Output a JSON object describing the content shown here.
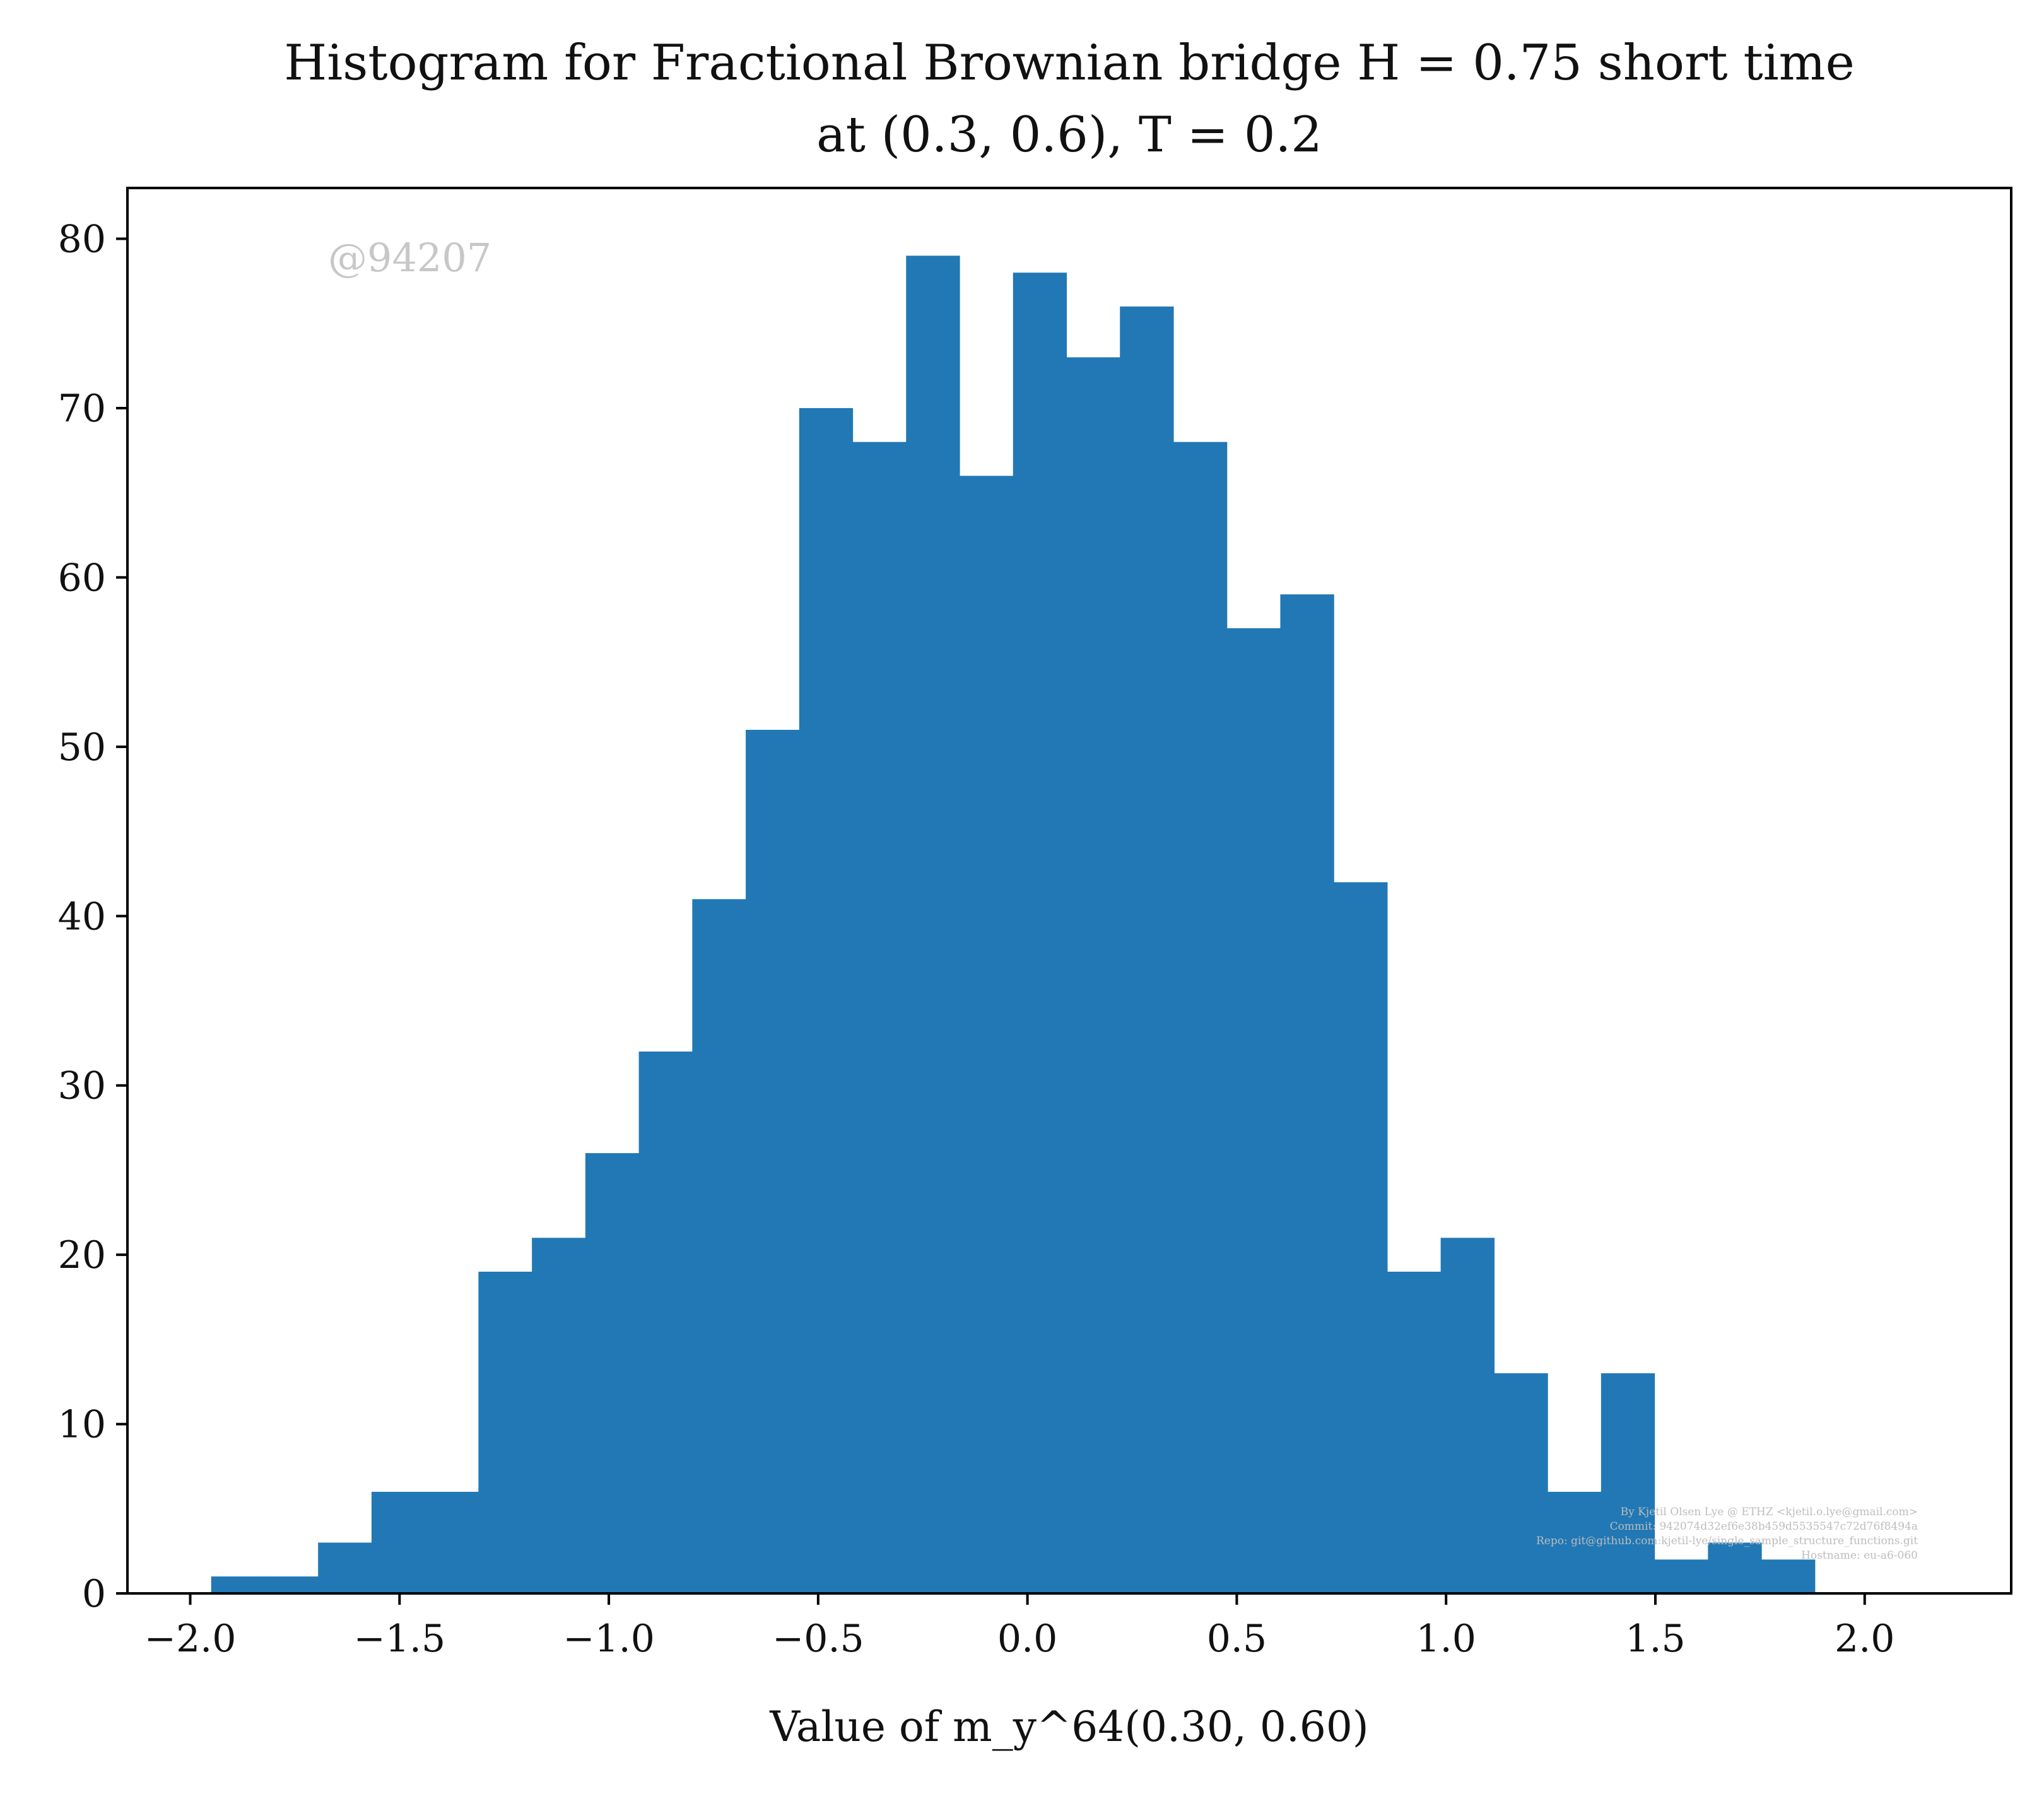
{
  "chart_data": {
    "type": "bar",
    "title_lines": [
      "Histogram for Fractional Brownian bridge H = 0.75 short time",
      "at (0.3, 0.6), T = 0.2"
    ],
    "xlabel": "Value of m_y^64(0.30, 0.60)",
    "ylabel": "",
    "xlim": [
      -2.15,
      2.35
    ],
    "ylim": [
      0,
      83
    ],
    "x_ticks": [
      -2.0,
      -1.5,
      -1.0,
      -0.5,
      0.0,
      0.5,
      1.0,
      1.5,
      2.0
    ],
    "x_tick_labels": [
      "−2.0",
      "−1.5",
      "−1.0",
      "−0.5",
      "0.0",
      "0.5",
      "1.0",
      "1.5",
      "2.0"
    ],
    "y_ticks": [
      0,
      10,
      20,
      30,
      40,
      50,
      60,
      70,
      80
    ],
    "y_tick_labels": [
      "0",
      "10",
      "20",
      "30",
      "40",
      "50",
      "60",
      "70",
      "80"
    ],
    "grid": false,
    "legend": "none",
    "bar_color": "#2178b4",
    "bin_start": -1.95,
    "bin_width": 0.1277,
    "counts": [
      1,
      1,
      3,
      6,
      6,
      19,
      21,
      26,
      32,
      41,
      51,
      70,
      68,
      79,
      66,
      78,
      73,
      76,
      68,
      57,
      59,
      42,
      19,
      21,
      13,
      6,
      13,
      2,
      3,
      2
    ],
    "watermark": "@94207",
    "footer_lines": [
      "By Kjetil Olsen Lye @ ETHZ <kjetil.o.lye@gmail.com>",
      "Commit: 942074d32ef6e38b459d5535547c72d76f8494a",
      "Repo: git@github.com:kjetil-lye/single_sample_structure_functions.git",
      "Hostname: eu-a6-060"
    ]
  }
}
